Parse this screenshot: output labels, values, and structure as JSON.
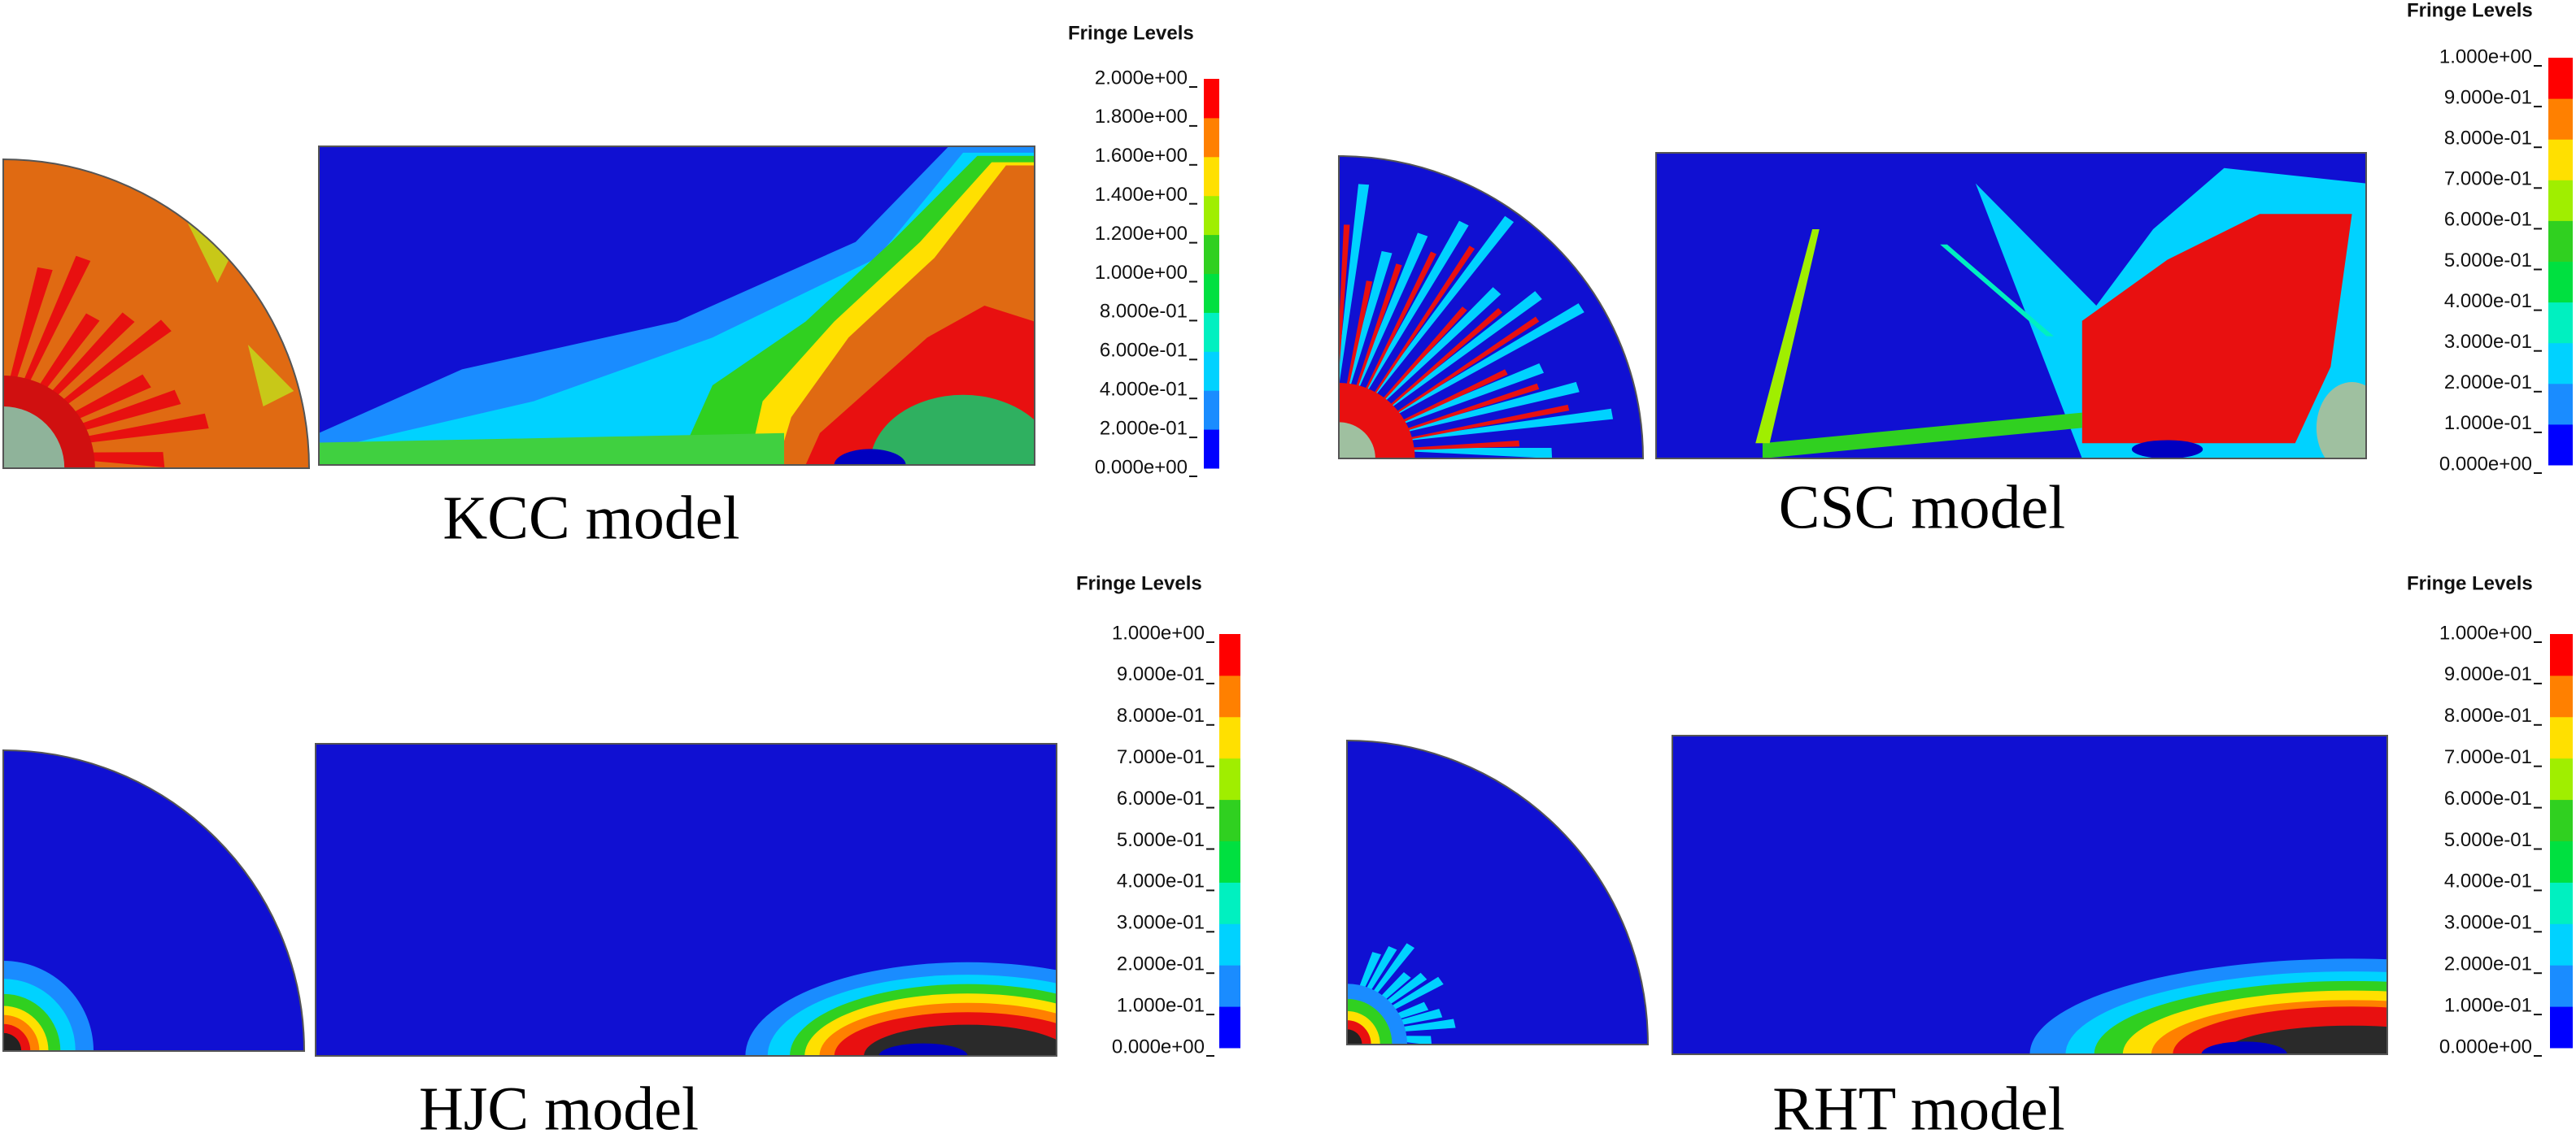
{
  "panels": [
    {
      "label": "KCC model",
      "legend_title": "Fringe Levels",
      "levels": [
        "2.000e+00",
        "1.800e+00",
        "1.600e+00",
        "1.400e+00",
        "1.200e+00",
        "1.000e+00",
        "8.000e-01",
        "6.000e-01",
        "4.000e-01",
        "2.000e-01",
        "0.000e+00"
      ]
    },
    {
      "label": "CSC model",
      "legend_title": "Fringe Levels",
      "levels": [
        "1.000e+00",
        "9.000e-01",
        "8.000e-01",
        "7.000e-01",
        "6.000e-01",
        "5.000e-01",
        "4.000e-01",
        "3.000e-01",
        "2.000e-01",
        "1.000e-01",
        "0.000e+00"
      ]
    },
    {
      "label": "HJC model",
      "legend_title": "Fringe Levels",
      "levels": [
        "1.000e+00",
        "9.000e-01",
        "8.000e-01",
        "7.000e-01",
        "6.000e-01",
        "5.000e-01",
        "4.000e-01",
        "3.000e-01",
        "2.000e-01",
        "1.000e-01",
        "0.000e+00"
      ]
    },
    {
      "label": "RHT model",
      "legend_title": "Fringe Levels",
      "levels": [
        "1.000e+00",
        "9.000e-01",
        "8.000e-01",
        "7.000e-01",
        "6.000e-01",
        "5.000e-01",
        "4.000e-01",
        "3.000e-01",
        "2.000e-01",
        "1.000e-01",
        "0.000e+00"
      ]
    }
  ]
}
